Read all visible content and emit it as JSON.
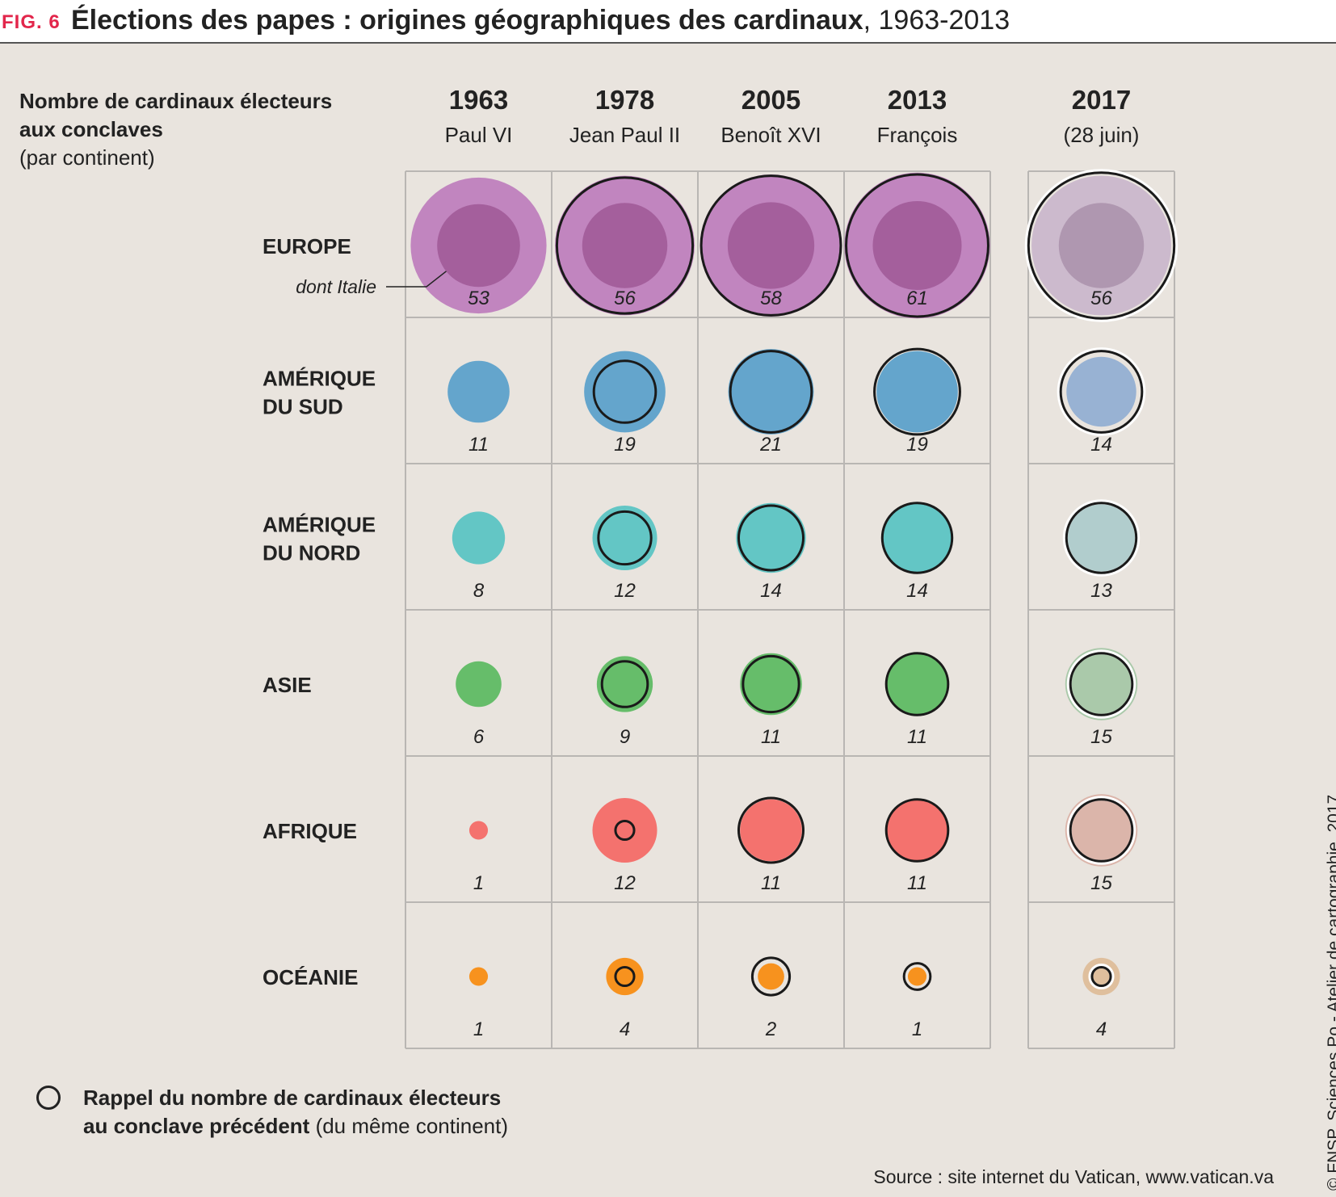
{
  "header": {
    "fig_label": "FIG. 6",
    "title_bold": "Élections des papes : origines géographiques des cardinaux",
    "title_rest": ", 1963-2013"
  },
  "subtitle": {
    "line1": "Nombre de cardinaux électeurs",
    "line2": "aux conclaves",
    "line3": "(par continent)"
  },
  "legend": {
    "line1": "Rappel du nombre de cardinaux électeurs",
    "line2_bold": "au conclave précédent",
    "line2_rest": " (du même continent)"
  },
  "annotation": "dont Italie",
  "source": "Source : site internet du Vatican, www.vatican.va",
  "copyright": "© FNSP. Sciences Po - Atelier de cartographie, 2017",
  "chart_data": {
    "type": "proportional-symbol-matrix",
    "title": "Élections des papes : origines géographiques des cardinaux, 1963-2013",
    "columns": [
      {
        "year": "1963",
        "label": "Paul VI"
      },
      {
        "year": "1978",
        "label": "Jean Paul II"
      },
      {
        "year": "2005",
        "label": "Benoît XVI"
      },
      {
        "year": "2013",
        "label": "François"
      },
      {
        "year": "2017",
        "label": "(28 juin)"
      }
    ],
    "rows": [
      {
        "continent": "EUROPE",
        "key": "europe",
        "color": "#c185bf",
        "inner_color": "#a45f9c",
        "color_2017": "#ccbacd",
        "inner_color_2017": "#af97b0",
        "values": [
          53,
          56,
          58,
          61,
          56
        ],
        "previous": [
          null,
          53,
          56,
          58,
          61
        ]
      },
      {
        "continent": "AMÉRIQUE DU SUD",
        "key": "amerique-du-sud",
        "color": "#64a5cc",
        "color_2017": "#98b2d3",
        "values": [
          11,
          19,
          21,
          19,
          14
        ],
        "previous": [
          null,
          11,
          19,
          21,
          19
        ]
      },
      {
        "continent": "AMÉRIQUE DU NORD",
        "key": "amerique-du-nord",
        "color": "#63c6c5",
        "color_2017": "#b1cdcd",
        "values": [
          8,
          12,
          14,
          14,
          13
        ],
        "previous": [
          null,
          8,
          12,
          14,
          14
        ]
      },
      {
        "continent": "ASIE",
        "key": "asie",
        "color": "#66bd6a",
        "color_2017": "#aac9aa",
        "values": [
          6,
          9,
          11,
          11,
          15
        ],
        "previous": [
          null,
          6,
          9,
          11,
          11
        ]
      },
      {
        "continent": "AFRIQUE",
        "key": "afrique",
        "color": "#f4726e",
        "color_2017": "#dbb5aa",
        "values": [
          1,
          12,
          11,
          11,
          15
        ],
        "previous": [
          null,
          1,
          12,
          11,
          11
        ]
      },
      {
        "continent": "OCÉANIE",
        "key": "oceanie",
        "color": "#f7921e",
        "color_2017": "#dfbf9d",
        "values": [
          1,
          4,
          2,
          1,
          4
        ],
        "previous": [
          null,
          1,
          4,
          2,
          1
        ]
      }
    ]
  }
}
